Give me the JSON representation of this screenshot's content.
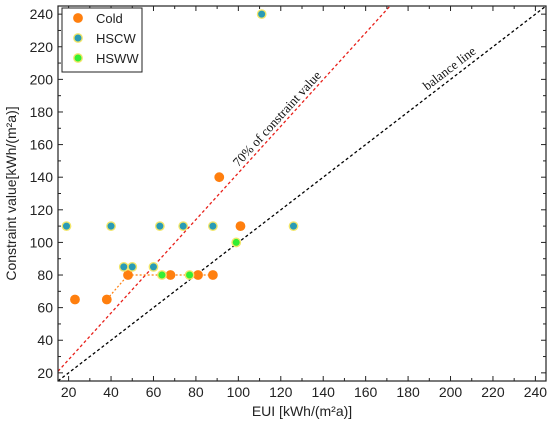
{
  "chart_data": {
    "type": "scatter",
    "xlabel": "EUI [kWh/(m²a)]",
    "ylabel": "Constraint value[kWh/(m²a)]",
    "xlim": [
      15,
      245
    ],
    "ylim": [
      15,
      245
    ],
    "x_ticks": [
      20,
      40,
      60,
      80,
      100,
      120,
      140,
      160,
      180,
      200,
      220,
      240
    ],
    "y_ticks": [
      20,
      40,
      60,
      80,
      100,
      120,
      140,
      160,
      180,
      200,
      220,
      240
    ],
    "grid": false,
    "legend_position": "top-left",
    "series": [
      {
        "name": "Cold",
        "color": "#ff7f0e",
        "stroke": "#ff7f0e",
        "points": [
          [
            23,
            65
          ],
          [
            38,
            65
          ],
          [
            48,
            80
          ],
          [
            68,
            80
          ],
          [
            81,
            80
          ],
          [
            88,
            80
          ],
          [
            91,
            140
          ],
          [
            101,
            110
          ]
        ]
      },
      {
        "name": "HSCW",
        "color": "#2a9bb5",
        "stroke": "#f2e66a",
        "points": [
          [
            19,
            110
          ],
          [
            40,
            110
          ],
          [
            46,
            85
          ],
          [
            50,
            85
          ],
          [
            60,
            85
          ],
          [
            63,
            110
          ],
          [
            74,
            110
          ],
          [
            88,
            110
          ],
          [
            111,
            240
          ],
          [
            126,
            110
          ]
        ]
      },
      {
        "name": "HSWW",
        "color": "#33ee33",
        "stroke": "#f2e66a",
        "points": [
          [
            64,
            80
          ],
          [
            77,
            80
          ],
          [
            99,
            100
          ]
        ]
      }
    ],
    "reference_lines": [
      {
        "label": "balance line",
        "slope": 1.0,
        "color": "#000000"
      },
      {
        "label": "70% of constraint value",
        "slope": 1.4286,
        "color": "#e8201a"
      }
    ],
    "orange_connector_color": "#ff7f0e"
  }
}
